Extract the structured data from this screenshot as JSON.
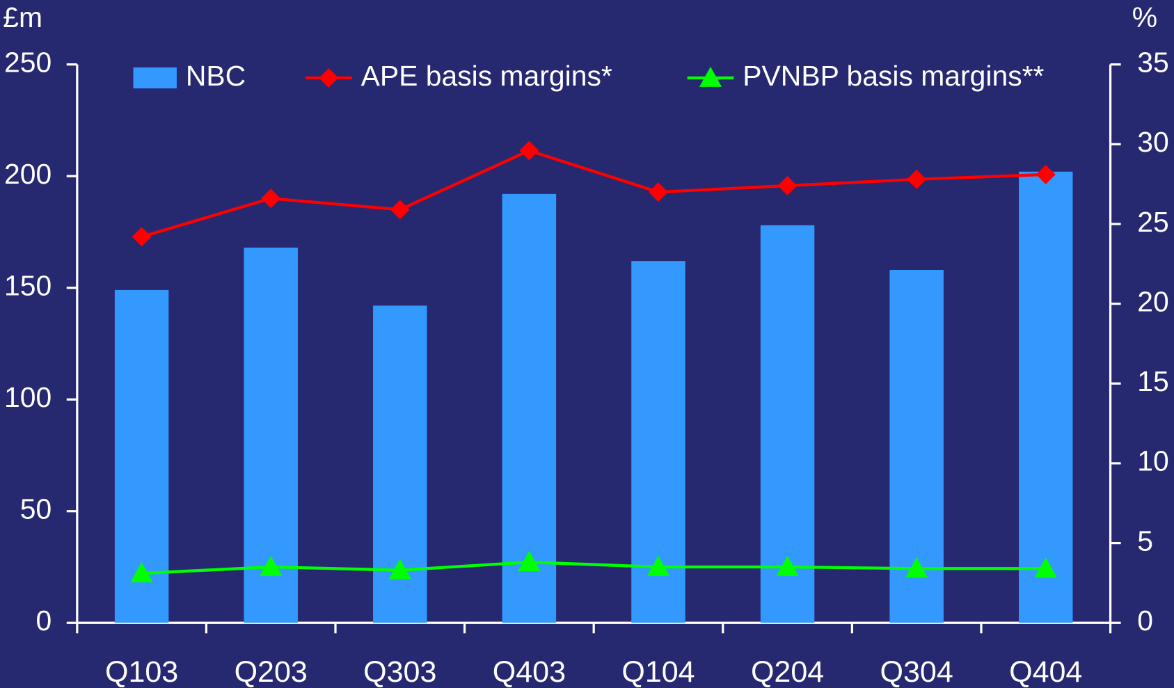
{
  "chart_data": {
    "type": "bar",
    "y_label": "£m",
    "y2_label": "%",
    "categories": [
      "Q103",
      "Q203",
      "Q303",
      "Q403",
      "Q104",
      "Q204",
      "Q304",
      "Q404"
    ],
    "series": [
      {
        "name": "NBC",
        "type": "bar",
        "color": "#3399ff",
        "values": [
          149,
          168,
          142,
          192,
          162,
          178,
          158,
          202
        ]
      },
      {
        "name": "APE basis margins*",
        "type": "line",
        "marker": "diamond",
        "axis": "y2",
        "color": "#ff0000",
        "values": [
          24.2,
          26.6,
          25.9,
          29.6,
          27.0,
          27.4,
          27.8,
          28.1
        ]
      },
      {
        "name": "PVNBP basis margins**",
        "type": "line",
        "marker": "triangle",
        "axis": "y2",
        "color": "#00ff00",
        "values": [
          3.1,
          3.5,
          3.3,
          3.8,
          3.5,
          3.5,
          3.4,
          3.4
        ]
      }
    ],
    "ylim": [
      0,
      250
    ],
    "yticks": [
      0,
      50,
      100,
      150,
      200,
      250
    ],
    "y2lim": [
      0,
      35
    ],
    "y2ticks": [
      0,
      5,
      10,
      15,
      20,
      25,
      30,
      35
    ],
    "legend": "top"
  }
}
